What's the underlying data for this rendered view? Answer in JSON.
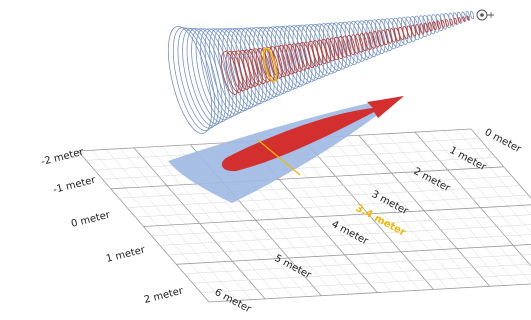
{
  "colors": {
    "outer_coil": "#6f8fc3",
    "inner_coil": "#c0392b",
    "projection_outer": "#9fb8e3",
    "projection_inner": "#d32f2f",
    "highlight": "#f2b705",
    "grid_major": "#9a9a9a",
    "grid_minor": "#d6d6d6"
  },
  "labels_left": [
    "-2 meter",
    "-1 meter",
    "0 meter",
    "1 meter",
    "2 meter"
  ],
  "labels_right": [
    "0 meter",
    "1 meter",
    "2 meter",
    "3 meter",
    "4 meter",
    "5 meter",
    "6 meter"
  ],
  "highlight_label": "3.4 meter",
  "emitter_icon": "antenna-icon"
}
